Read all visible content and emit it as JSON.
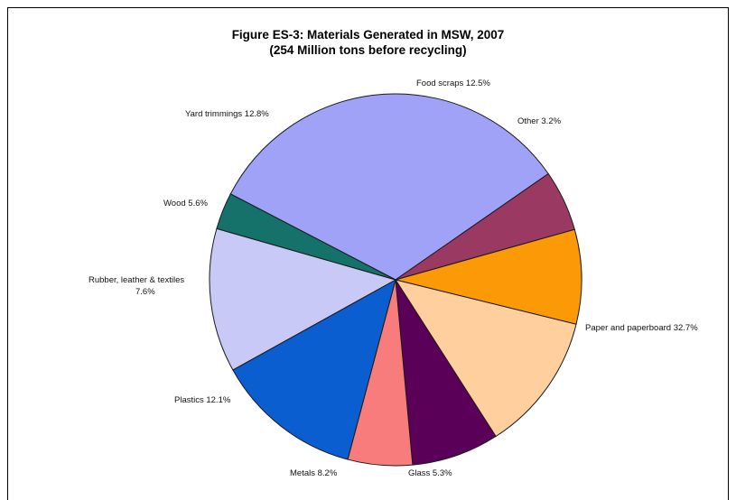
{
  "chart_data": {
    "type": "pie",
    "title": "Figure ES-3: Materials Generated in MSW, 2007",
    "subtitle": "(254 Million tons before recycling)",
    "slices": [
      {
        "label": "Paper and paperboard 32.7%",
        "value": 32.7,
        "color": "#A0A2F8"
      },
      {
        "label": "Glass 5.3%",
        "value": 5.3,
        "color": "#9A3A63"
      },
      {
        "label": "Metals 8.2%",
        "value": 8.2,
        "color": "#FB9A06"
      },
      {
        "label": "Plastics 12.1%",
        "value": 12.1,
        "color": "#FFCF9E"
      },
      {
        "label": "Rubber, leather & textiles|7.6%",
        "value": 7.6,
        "color": "#5A0058"
      },
      {
        "label": "Wood 5.6%",
        "value": 5.6,
        "color": "#F87C7C"
      },
      {
        "label": "Yard trimmings 12.8%",
        "value": 12.8,
        "color": "#0A5ECF"
      },
      {
        "label": "Food scraps 12.5%",
        "value": 12.5,
        "color": "#C9C9F7"
      },
      {
        "label": "Other 3.2%",
        "value": 3.2,
        "color": "#14726A"
      }
    ]
  }
}
